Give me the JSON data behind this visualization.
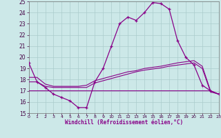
{
  "xlabel": "Windchill (Refroidissement éolien,°C)",
  "x_hours": [
    0,
    1,
    2,
    3,
    4,
    5,
    6,
    7,
    8,
    9,
    10,
    11,
    12,
    13,
    14,
    15,
    16,
    17,
    18,
    19,
    20,
    21,
    22,
    23
  ],
  "line1_y": [
    19.5,
    17.8,
    17.3,
    16.7,
    16.4,
    16.1,
    15.5,
    15.5,
    17.8,
    19.0,
    21.0,
    23.0,
    23.6,
    23.3,
    24.0,
    24.9,
    24.8,
    24.3,
    21.5,
    20.0,
    19.3,
    17.5,
    17.0,
    16.7
  ],
  "line2_y": [
    18.2,
    18.2,
    17.6,
    17.4,
    17.4,
    17.4,
    17.4,
    17.5,
    17.9,
    18.1,
    18.3,
    18.5,
    18.7,
    18.8,
    19.0,
    19.1,
    19.2,
    19.35,
    19.5,
    19.6,
    19.7,
    19.2,
    17.0,
    16.7
  ],
  "line3_y": [
    17.8,
    17.8,
    17.4,
    17.3,
    17.3,
    17.3,
    17.3,
    17.3,
    17.7,
    17.9,
    18.1,
    18.3,
    18.5,
    18.7,
    18.85,
    18.95,
    19.05,
    19.2,
    19.3,
    19.4,
    19.5,
    19.0,
    16.9,
    16.7
  ],
  "line4_y": [
    17.0,
    17.0,
    17.0,
    17.0,
    17.0,
    17.0,
    17.0,
    17.0,
    17.0,
    17.0,
    17.0,
    17.0,
    17.0,
    17.0,
    17.0,
    17.0,
    17.0,
    17.0,
    17.0,
    17.0,
    17.0,
    17.0,
    17.0,
    16.7
  ],
  "color": "#880088",
  "bg_color": "#cce8e8",
  "grid_color": "#aacccc",
  "ylim": [
    15,
    25
  ],
  "yticks": [
    15,
    16,
    17,
    18,
    19,
    20,
    21,
    22,
    23,
    24,
    25
  ]
}
